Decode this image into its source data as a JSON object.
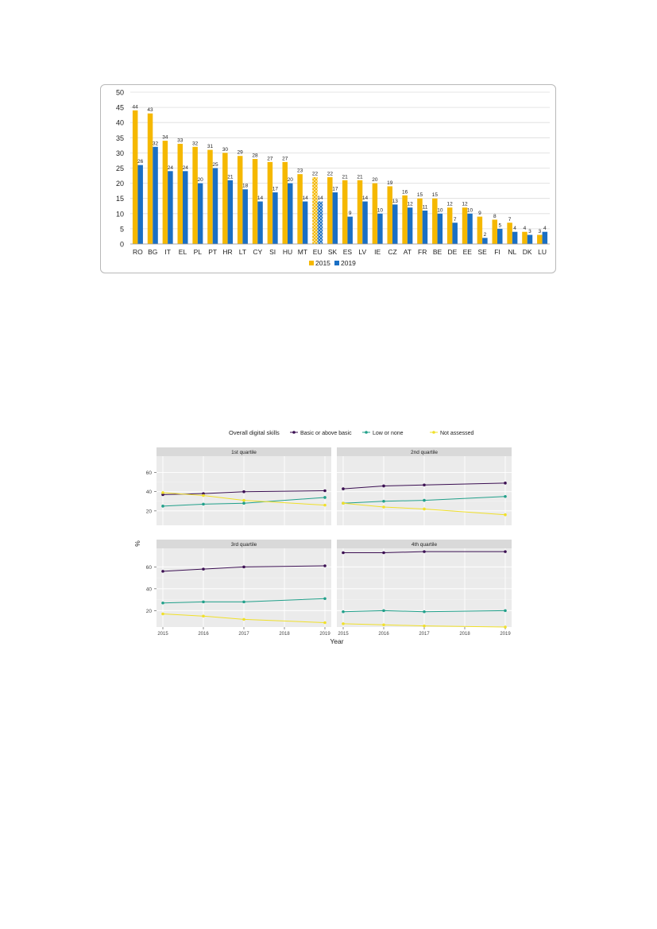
{
  "chart_data": [
    {
      "type": "bar",
      "categories": [
        "RO",
        "BG",
        "IT",
        "EL",
        "PL",
        "PT",
        "HR",
        "LT",
        "CY",
        "SI",
        "HU",
        "MT",
        "EU",
        "SK",
        "ES",
        "LV",
        "IE",
        "CZ",
        "AT",
        "FR",
        "BE",
        "DE",
        "EE",
        "SE",
        "FI",
        "NL",
        "DK",
        "LU"
      ],
      "series": [
        {
          "name": "2015",
          "color": "#f5b800",
          "values": [
            44,
            43,
            34,
            33,
            32,
            31,
            30,
            29,
            28,
            27,
            27,
            23,
            22,
            22,
            21,
            21,
            20,
            19,
            16,
            15,
            15,
            12,
            12,
            9,
            8,
            7,
            4,
            3
          ]
        },
        {
          "name": "2019",
          "color": "#1a6fc4",
          "values": [
            26,
            32,
            24,
            24,
            20,
            25,
            21,
            18,
            14,
            17,
            20,
            14,
            14,
            17,
            9,
            14,
            10,
            13,
            12,
            11,
            10,
            7,
            10,
            2,
            5,
            4,
            3,
            4
          ]
        }
      ],
      "highlight_category": "EU",
      "ylim": [
        0,
        50
      ],
      "yticks": [
        0,
        5,
        10,
        15,
        20,
        25,
        30,
        35,
        40,
        45,
        50
      ],
      "legend": "bottom",
      "grid": true
    },
    {
      "type": "line",
      "legend_title": "Overall digital skills",
      "legend_position": "top",
      "xlabel": "Year",
      "ylabel": "%",
      "x": [
        2015,
        2016,
        2017,
        2018,
        2019
      ],
      "xticks": [
        "2015",
        "2016",
        "2017",
        "2018",
        "2019"
      ],
      "yticks": [
        20,
        40,
        60
      ],
      "ylim": [
        5,
        77
      ],
      "series_names": [
        "Basic or above basic",
        "Low or none",
        "Not assessed"
      ],
      "series_colors": [
        "#3b0f52",
        "#21a08a",
        "#f0e02a"
      ],
      "panels": [
        {
          "title": "1st quartile",
          "series": [
            [
              37,
              38,
              40,
              null,
              41
            ],
            [
              25,
              27,
              28,
              null,
              34
            ],
            [
              39,
              36,
              31,
              null,
              26
            ]
          ]
        },
        {
          "title": "2nd quartile",
          "series": [
            [
              43,
              46,
              47,
              null,
              49
            ],
            [
              28,
              30,
              31,
              null,
              35
            ],
            [
              28,
              24,
              22,
              null,
              16
            ]
          ]
        },
        {
          "title": "3rd quartile",
          "series": [
            [
              56,
              58,
              60,
              null,
              61
            ],
            [
              27,
              28,
              28,
              null,
              31
            ],
            [
              17,
              15,
              12,
              null,
              9
            ]
          ]
        },
        {
          "title": "4th quartile",
          "series": [
            [
              73,
              73,
              74,
              null,
              74
            ],
            [
              19,
              20,
              19,
              null,
              20
            ],
            [
              8,
              7,
              6,
              null,
              5
            ]
          ]
        }
      ]
    }
  ]
}
